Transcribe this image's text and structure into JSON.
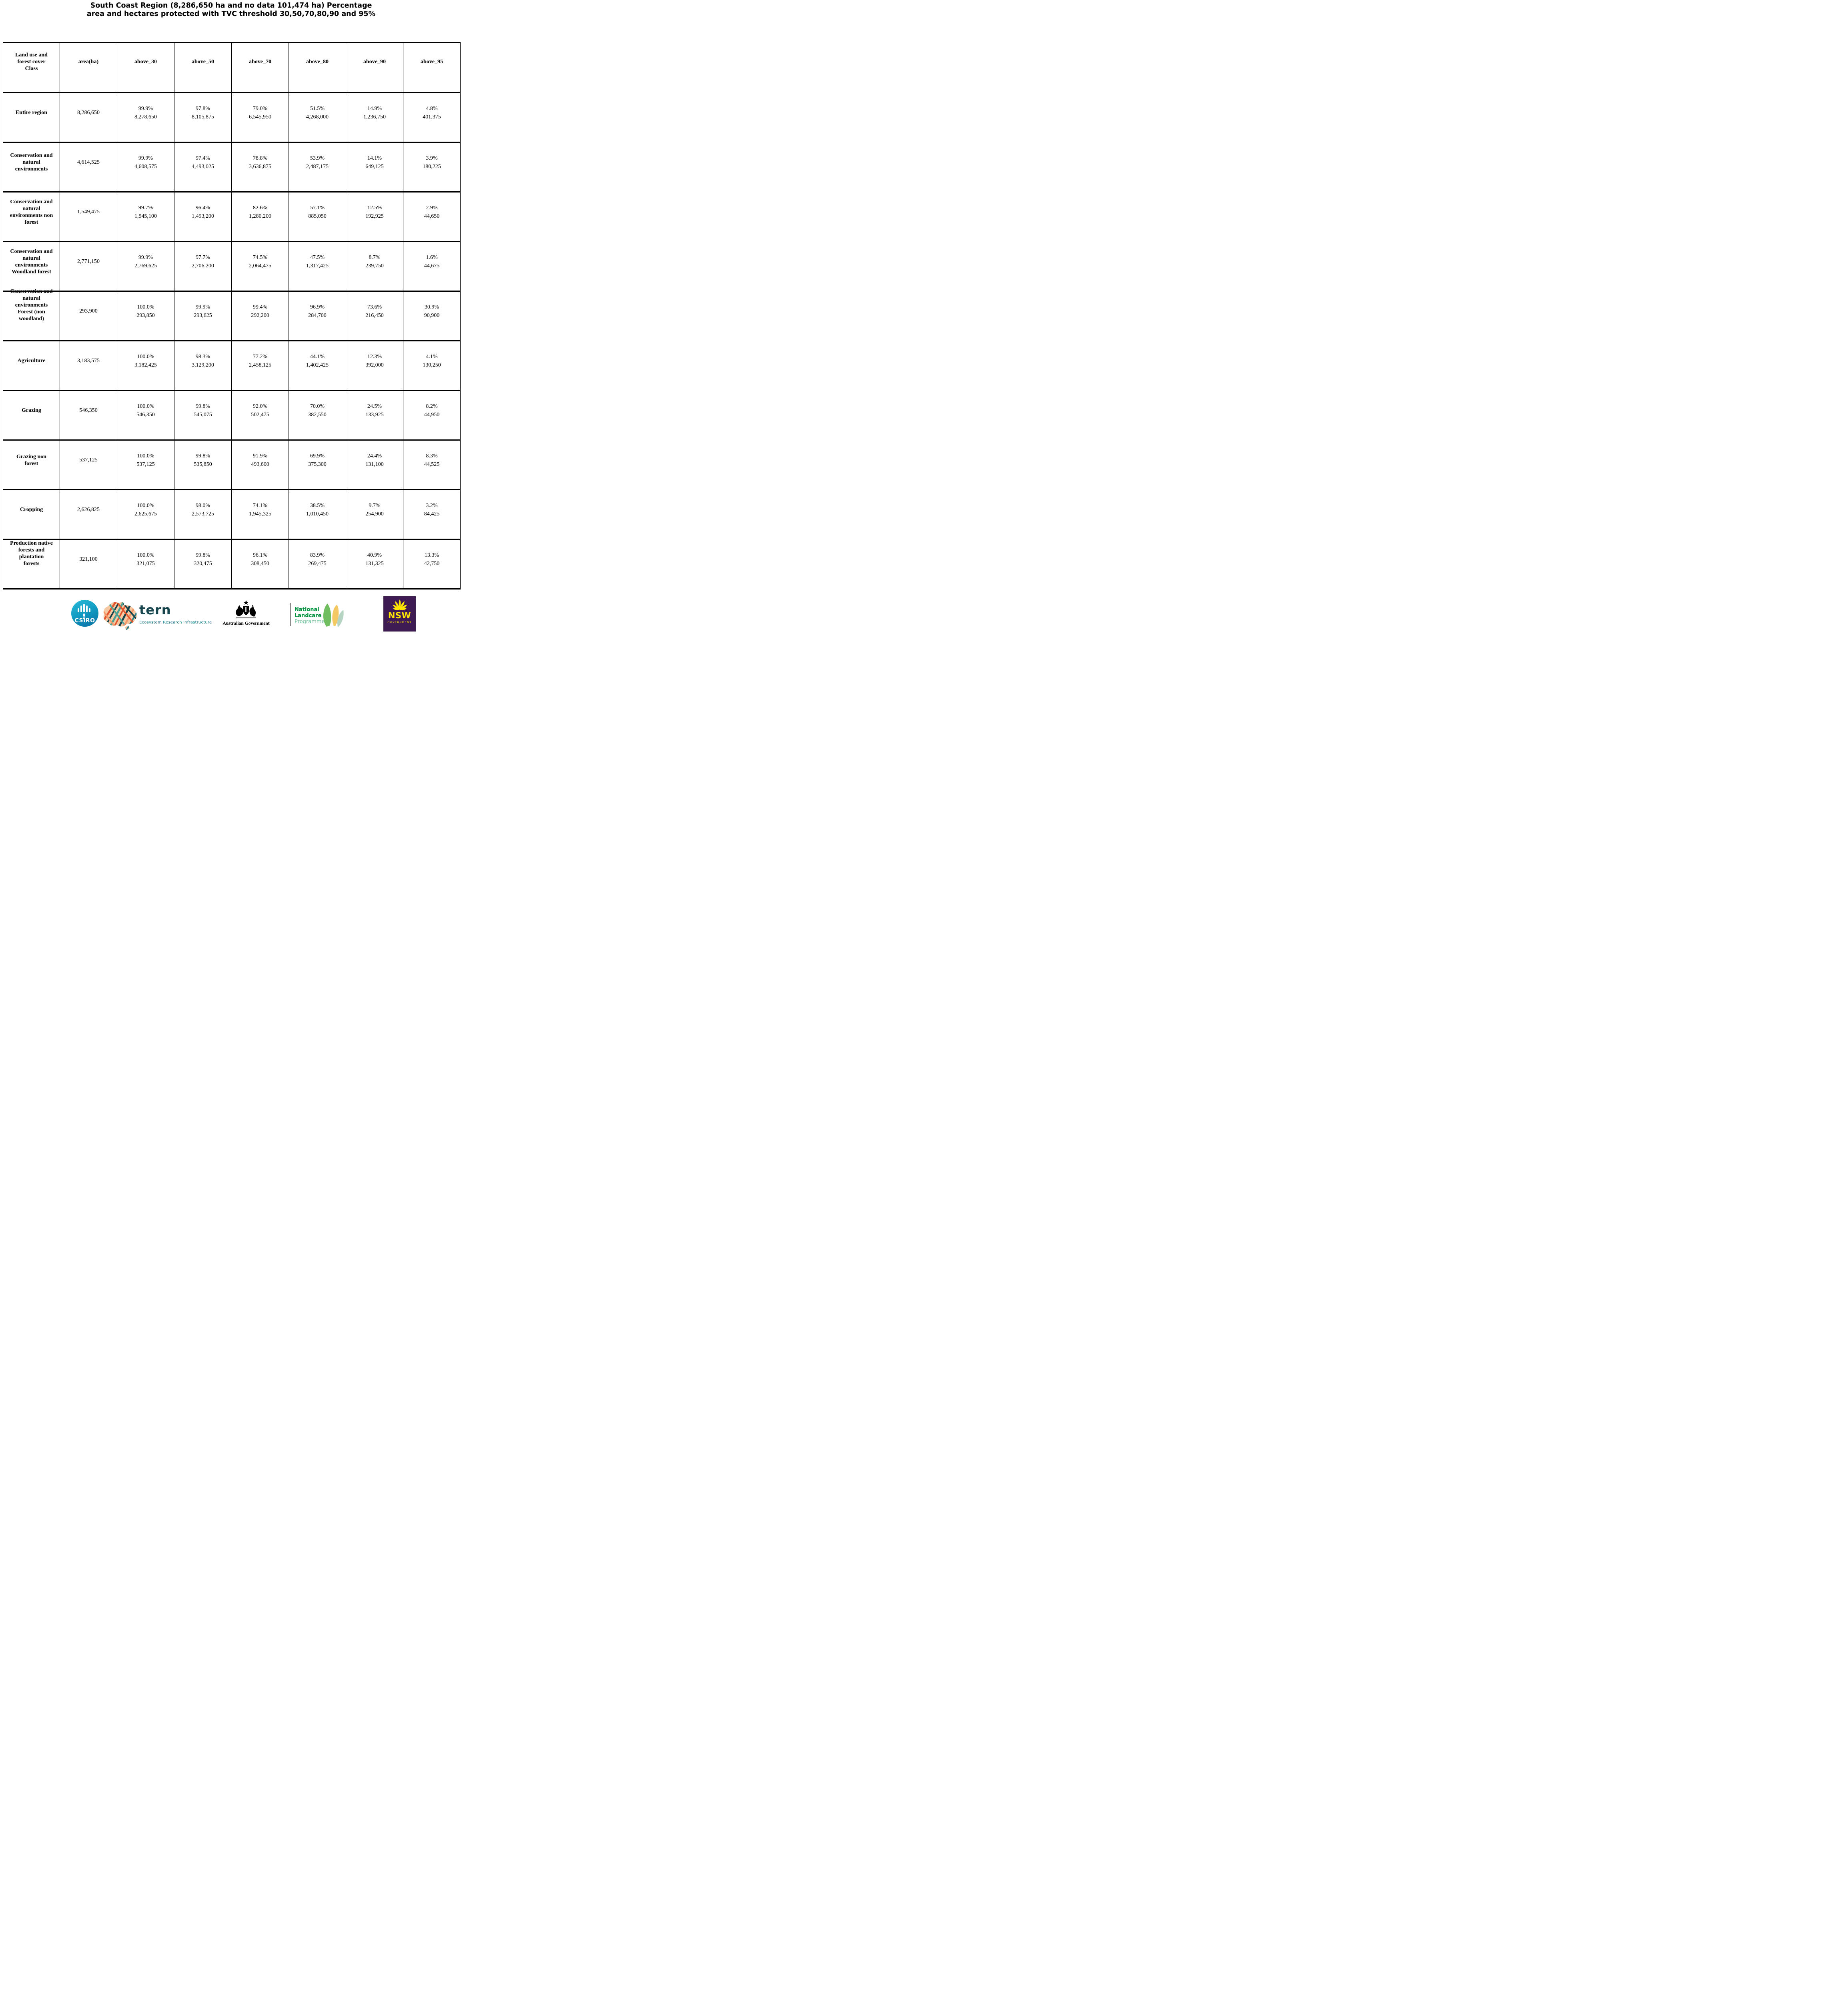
{
  "title": {
    "line1": "South Coast Region (8,286,650 ha and no data 101,474 ha) Percentage",
    "line2": "area and hectares protected with TVC threshold 30,50,70,80,90 and 95%"
  },
  "table": {
    "header_label_display": "Land use and\nforest cover\nClass"
  },
  "chart_data": {
    "type": "table",
    "title": "South Coast Region (8,286,650 ha and no data 101,474 ha) Percentage area and hectares protected with TVC threshold 30,50,70,80,90 and 95%",
    "region_area_ha": 8286650,
    "no_data_ha": 101474,
    "thresholds": [
      30,
      50,
      70,
      80,
      90,
      95
    ],
    "columns": [
      "Land use and forest cover Class",
      "area(ha)",
      "above_30",
      "above_50",
      "above_70",
      "above_80",
      "above_90",
      "above_95"
    ],
    "rows": [
      {
        "class": "Entire region",
        "label_display": "Entire region",
        "area_ha": 8286650,
        "values": [
          [
            99.9,
            8278650
          ],
          [
            97.8,
            8105875
          ],
          [
            79.0,
            6545950
          ],
          [
            51.5,
            4268000
          ],
          [
            14.9,
            1236750
          ],
          [
            4.8,
            401375
          ]
        ]
      },
      {
        "class": "Conservation and natural environments",
        "label_display": "Conservation and\nnatural\nenvironments",
        "area_ha": 4614525,
        "values": [
          [
            99.9,
            4608575
          ],
          [
            97.4,
            4493025
          ],
          [
            78.8,
            3636875
          ],
          [
            53.9,
            2487175
          ],
          [
            14.1,
            649125
          ],
          [
            3.9,
            180225
          ]
        ]
      },
      {
        "class": "Conservation and natural environments non forest",
        "label_display": "Conservation and\nnatural\nenvironments non\nforest",
        "area_ha": 1549475,
        "values": [
          [
            99.7,
            1545100
          ],
          [
            96.4,
            1493200
          ],
          [
            82.6,
            1280200
          ],
          [
            57.1,
            885050
          ],
          [
            12.5,
            192925
          ],
          [
            2.9,
            44650
          ]
        ]
      },
      {
        "class": "Conservation and natural environments Woodland forest",
        "label_display": "Conservation and\nnatural\nenvironments\nWoodland forest",
        "area_ha": 2771150,
        "values": [
          [
            99.9,
            2769625
          ],
          [
            97.7,
            2706200
          ],
          [
            74.5,
            2064475
          ],
          [
            47.5,
            1317425
          ],
          [
            8.7,
            239750
          ],
          [
            1.6,
            44675
          ]
        ]
      },
      {
        "class": "Conservation and natural environments Forest (non woodland)",
        "label_display": "Conservation and\nnatural\nenvironments\nForest (non\nwoodland)",
        "area_ha": 293900,
        "values": [
          [
            100.0,
            293850
          ],
          [
            99.9,
            293625
          ],
          [
            99.4,
            292200
          ],
          [
            96.9,
            284700
          ],
          [
            73.6,
            216450
          ],
          [
            30.9,
            90900
          ]
        ]
      },
      {
        "class": "Agriculture",
        "label_display": "Agriculture",
        "area_ha": 3183575,
        "values": [
          [
            100.0,
            3182425
          ],
          [
            98.3,
            3129200
          ],
          [
            77.2,
            2458125
          ],
          [
            44.1,
            1402425
          ],
          [
            12.3,
            392000
          ],
          [
            4.1,
            130250
          ]
        ]
      },
      {
        "class": "Grazing",
        "label_display": "Grazing",
        "area_ha": 546350,
        "values": [
          [
            100.0,
            546350
          ],
          [
            99.8,
            545075
          ],
          [
            92.0,
            502475
          ],
          [
            70.0,
            382550
          ],
          [
            24.5,
            133925
          ],
          [
            8.2,
            44950
          ]
        ]
      },
      {
        "class": "Grazing non forest",
        "label_display": "Grazing non\nforest",
        "area_ha": 537125,
        "values": [
          [
            100.0,
            537125
          ],
          [
            99.8,
            535850
          ],
          [
            91.9,
            493600
          ],
          [
            69.9,
            375300
          ],
          [
            24.4,
            131100
          ],
          [
            8.3,
            44525
          ]
        ]
      },
      {
        "class": "Cropping",
        "label_display": "Cropping",
        "area_ha": 2626825,
        "values": [
          [
            100.0,
            2625675
          ],
          [
            98.0,
            2573725
          ],
          [
            74.1,
            1945325
          ],
          [
            38.5,
            1010450
          ],
          [
            9.7,
            254900
          ],
          [
            3.2,
            84425
          ]
        ]
      },
      {
        "class": "Production native forests and plantation forests",
        "label_display": "Production native\nforests and\nplantation\nforests",
        "area_ha": 321100,
        "values": [
          [
            100.0,
            321075
          ],
          [
            99.8,
            320475
          ],
          [
            96.1,
            308450
          ],
          [
            83.9,
            269475
          ],
          [
            40.9,
            131325
          ],
          [
            13.3,
            42750
          ]
        ]
      }
    ]
  },
  "footer": {
    "csiro": {
      "label": "CSIRO"
    },
    "tern": {
      "brand": "tern",
      "tagline": "Ecosystem Research Infrastructure"
    },
    "aus_gov": {
      "label": "Australian Government"
    },
    "landcare": {
      "line1": "National",
      "line2": "Landcare",
      "line3": "Programme"
    },
    "nsw": {
      "brand": "NSW",
      "sub": "GOVERNMENT"
    }
  },
  "colors": {
    "csiro_teal_light": "#2ab6d6",
    "csiro_blue": "#0a6da4",
    "tern_dark": "#17454e",
    "tern_teal": "#0f7280",
    "landcare_green": "#00913c",
    "landcare_light_green": "#6cc49a",
    "nsw_purple": "#3e1b53",
    "nsw_yellow": "#ffe600",
    "border_black": "#000000"
  }
}
